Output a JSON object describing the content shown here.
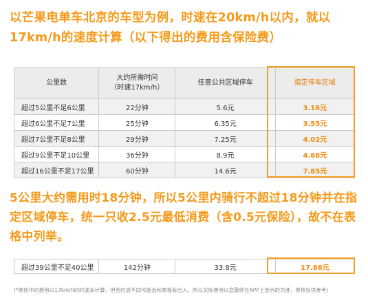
{
  "intro_text": "以芒果电单车北京的车型为例，时速在20km/h以内，就以17km/h的速度计算（以下得出的费用含保险费）",
  "table": {
    "headers": {
      "distance": "公里数",
      "time_line1": "大约所需时间",
      "time_line2": "（时速17km/h）",
      "public_area": "任意公共区域停车",
      "designated_area": "指定停车区域"
    },
    "rows": [
      {
        "distance": "超过5公里不足6公里",
        "time": "22分钟",
        "public": "5.6元",
        "designated": "3.16元"
      },
      {
        "distance": "超过6公里不足7公里",
        "time": "25分钟",
        "public": "6.35元",
        "designated": "3.55元"
      },
      {
        "distance": "超过7公里不足8公里",
        "time": "29分钟",
        "public": "7.25元",
        "designated": "4.02元"
      },
      {
        "distance": "超过9公里不足10公里",
        "time": "36分钟",
        "public": "8.9元",
        "designated": "4.88元"
      },
      {
        "distance": "超过16公里不足17公里",
        "time": "60分钟",
        "public": "14.6元",
        "designated": "7.85元"
      }
    ]
  },
  "note_text": "5公里大约需用时18分钟，所以5公里内骑行不超过18分钟并在指定区域停车，统一只收2.5元最低消费（含0.5元保险），故不在表格中列举。",
  "extra_row": {
    "distance": "超过39公里不足40公里",
    "time": "142分钟",
    "public": "33.8元",
    "designated": "17.86元"
  },
  "footnote": "(*表格中的费用以17km/h的时速来计算，但若时速不同可能会和表格有出入，所以实际费用以您最终在APP上显示的为准，表格仅供参考)",
  "colors": {
    "accent": "#f59a1a",
    "highlight_text": "#f08a0a"
  }
}
